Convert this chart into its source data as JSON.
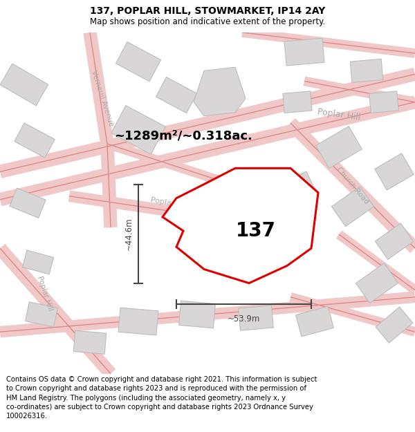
{
  "title": "137, POPLAR HILL, STOWMARKET, IP14 2AY",
  "subtitle": "Map shows position and indicative extent of the property.",
  "footer": "Contains OS data © Crown copyright and database right 2021. This information is subject to Crown copyright and database rights 2023 and is reproduced with the permission of HM Land Registry. The polygons (including the associated geometry, namely x, y co-ordinates) are subject to Crown copyright and database rights 2023 Ordnance Survey 100026316.",
  "area_label": "~1289m²/~0.318ac.",
  "plot_number": "137",
  "width_label": "~53.9m",
  "height_label": "~44.6m",
  "map_bg": "#f7f5f5",
  "road_color": "#f0c8c8",
  "road_line_color": "#e08888",
  "building_color": "#d8d6d6",
  "building_edge": "#c0bcbc",
  "plot_fill": "white",
  "plot_edge": "#dd0000",
  "title_fontsize": 10,
  "subtitle_fontsize": 8.5,
  "footer_fontsize": 7.2,
  "label_color": "#aaaaaa",
  "dim_color": "#444444"
}
